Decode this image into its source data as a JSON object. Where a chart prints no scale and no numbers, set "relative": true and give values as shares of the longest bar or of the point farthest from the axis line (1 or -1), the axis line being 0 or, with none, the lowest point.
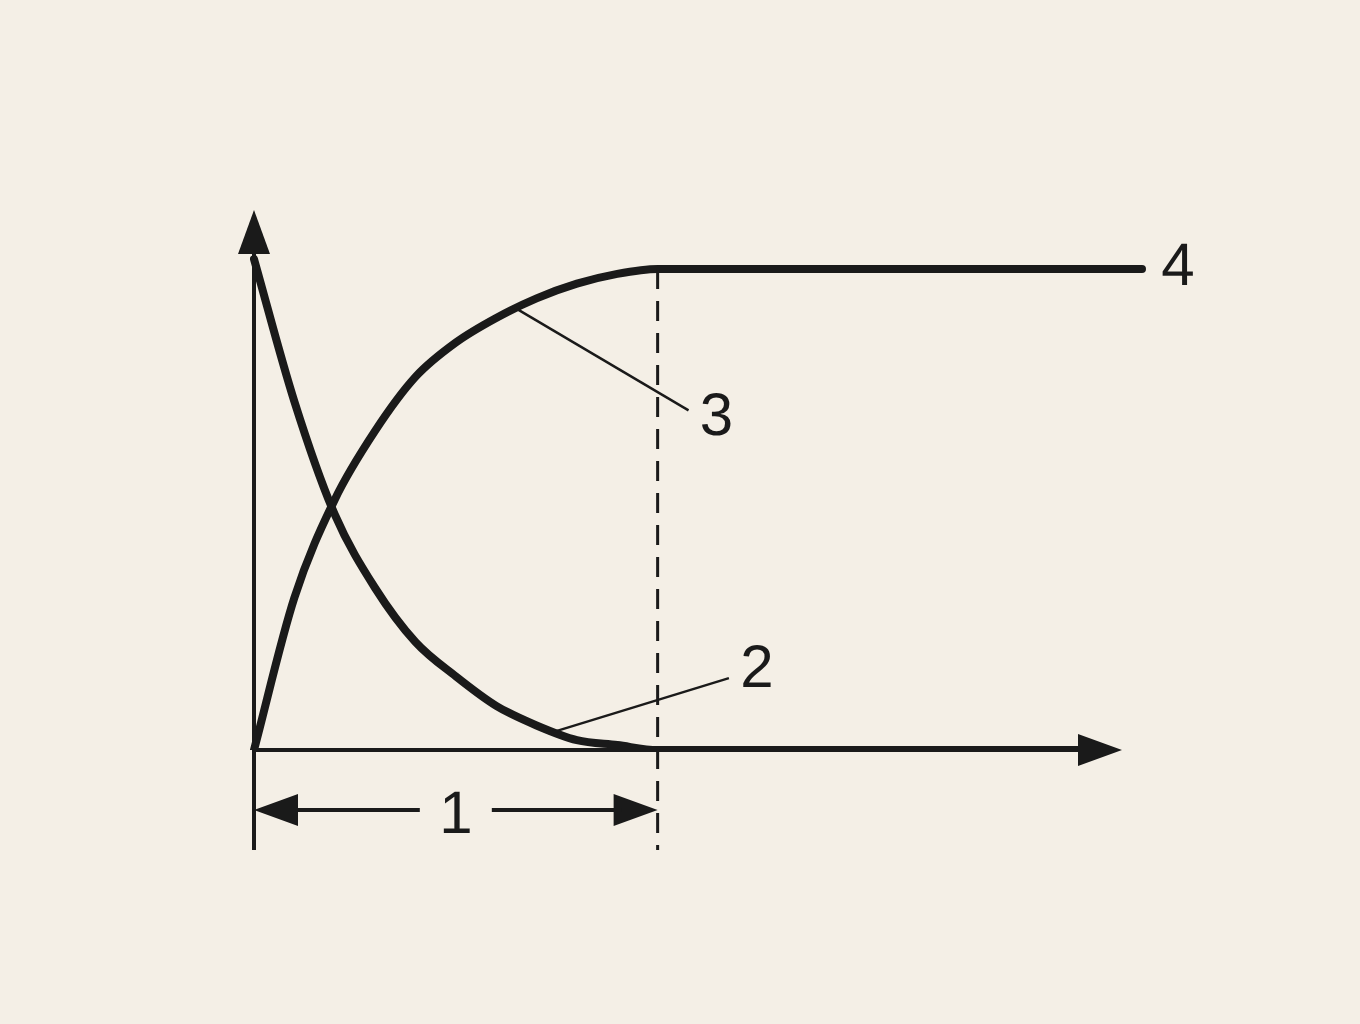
{
  "chart_data": {
    "type": "line",
    "relative": true,
    "categories": [
      null,
      null,
      null,
      null,
      null,
      null,
      null,
      null,
      null,
      null,
      null,
      null,
      null,
      null,
      null,
      null,
      null,
      null,
      null,
      null,
      null,
      null,
      null
    ],
    "series": [
      {
        "color": "#1a1a1a",
        "values": [
          0,
          0.31,
          0.51,
          0.65,
          0.76,
          0.83,
          0.88,
          0.92,
          0.95,
          0.97,
          0.98,
          0.98,
          0.98,
          0.98,
          0.98,
          0.98,
          0.98,
          0.98,
          0.98,
          0.98,
          0.98,
          0.98,
          0.98
        ]
      },
      {
        "color": "#1a1a1a",
        "values": [
          1,
          0.71,
          0.48,
          0.33,
          0.22,
          0.15,
          0.09,
          0.05,
          0.02,
          0.01,
          0,
          0,
          0,
          0,
          0,
          0,
          0,
          0,
          0,
          0,
          0,
          0,
          null
        ]
      }
    ],
    "annotations": [
      "1",
      "2",
      "3",
      "4"
    ],
    "marker": "none",
    "line_style": "solid",
    "legend": false
  }
}
